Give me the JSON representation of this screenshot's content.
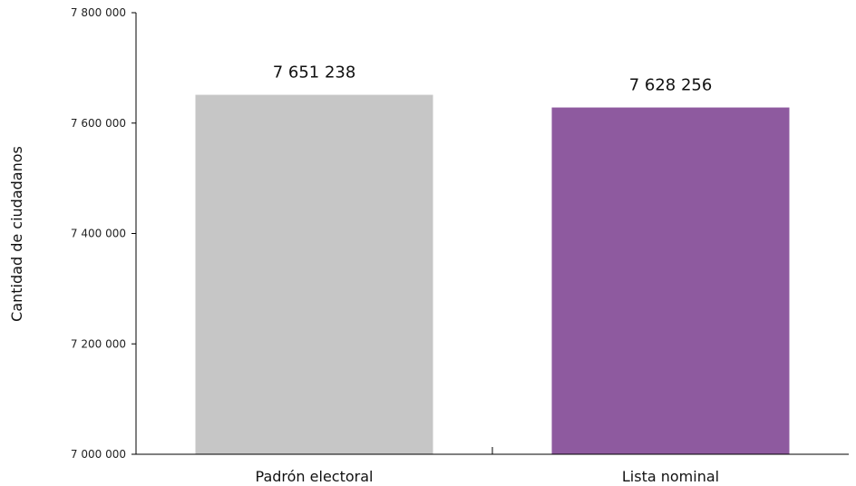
{
  "chart_data": {
    "type": "bar",
    "categories": [
      "Padrón electoral",
      "Lista nominal"
    ],
    "values": [
      7651238,
      7628256
    ],
    "value_labels": [
      "7 651 238",
      "7 628 256"
    ],
    "colors": [
      "#c6c6c6",
      "#8e5a9f"
    ],
    "title": "",
    "xlabel": "",
    "ylabel": "Cantidad de ciudadanos",
    "ylim": [
      7000000,
      7800000
    ],
    "yticks": [
      7000000,
      7200000,
      7400000,
      7600000,
      7800000
    ],
    "ytick_labels": [
      "7 000 000",
      "7 200 000",
      "7 400 000",
      "7 600 000",
      "7 800 000"
    ],
    "grid": false,
    "legend": "none"
  }
}
